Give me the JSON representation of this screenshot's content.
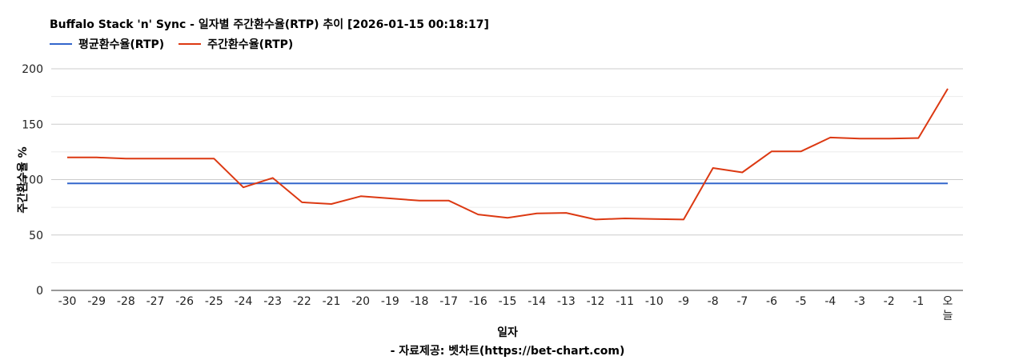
{
  "chart_data": {
    "type": "line",
    "title": "Buffalo Stack 'n' Sync - 일자별 주간환수율(RTP) 추이 [2026-01-15 00:18:17]",
    "xlabel": "일자",
    "ylabel": "주간환수율 %",
    "source": "- 자료제공: 벳차트(https://bet-chart.com)",
    "categories": [
      "-30",
      "-29",
      "-28",
      "-27",
      "-26",
      "-25",
      "-24",
      "-23",
      "-22",
      "-21",
      "-20",
      "-19",
      "-18",
      "-17",
      "-16",
      "-15",
      "-14",
      "-13",
      "-12",
      "-11",
      "-10",
      "-9",
      "-8",
      "-7",
      "-6",
      "-5",
      "-4",
      "-3",
      "-2",
      "-1",
      "오늘"
    ],
    "ylim": [
      0,
      200
    ],
    "yticks": [
      0,
      50,
      100,
      150,
      200
    ],
    "grid": true,
    "legend_position": "top-left",
    "series": [
      {
        "name": "평균환수율(RTP)",
        "color": "#3366cc",
        "values": [
          96.5,
          96.5,
          96.5,
          96.5,
          96.5,
          96.5,
          96.5,
          96.5,
          96.5,
          96.5,
          96.5,
          96.5,
          96.5,
          96.5,
          96.5,
          96.5,
          96.5,
          96.5,
          96.5,
          96.5,
          96.5,
          96.5,
          96.5,
          96.5,
          96.5,
          96.5,
          96.5,
          96.5,
          96.5,
          96.5,
          96.5
        ]
      },
      {
        "name": "주간환수율(RTP)",
        "color": "#dc3912",
        "values": [
          120,
          120,
          119,
          119,
          119,
          119,
          93,
          101.5,
          79.5,
          78,
          85,
          83,
          81,
          81,
          68.5,
          65.5,
          69.5,
          70,
          64,
          65,
          64.5,
          64,
          110.5,
          106.5,
          125.5,
          125.5,
          138,
          137,
          137,
          137.5,
          182
        ]
      }
    ]
  }
}
